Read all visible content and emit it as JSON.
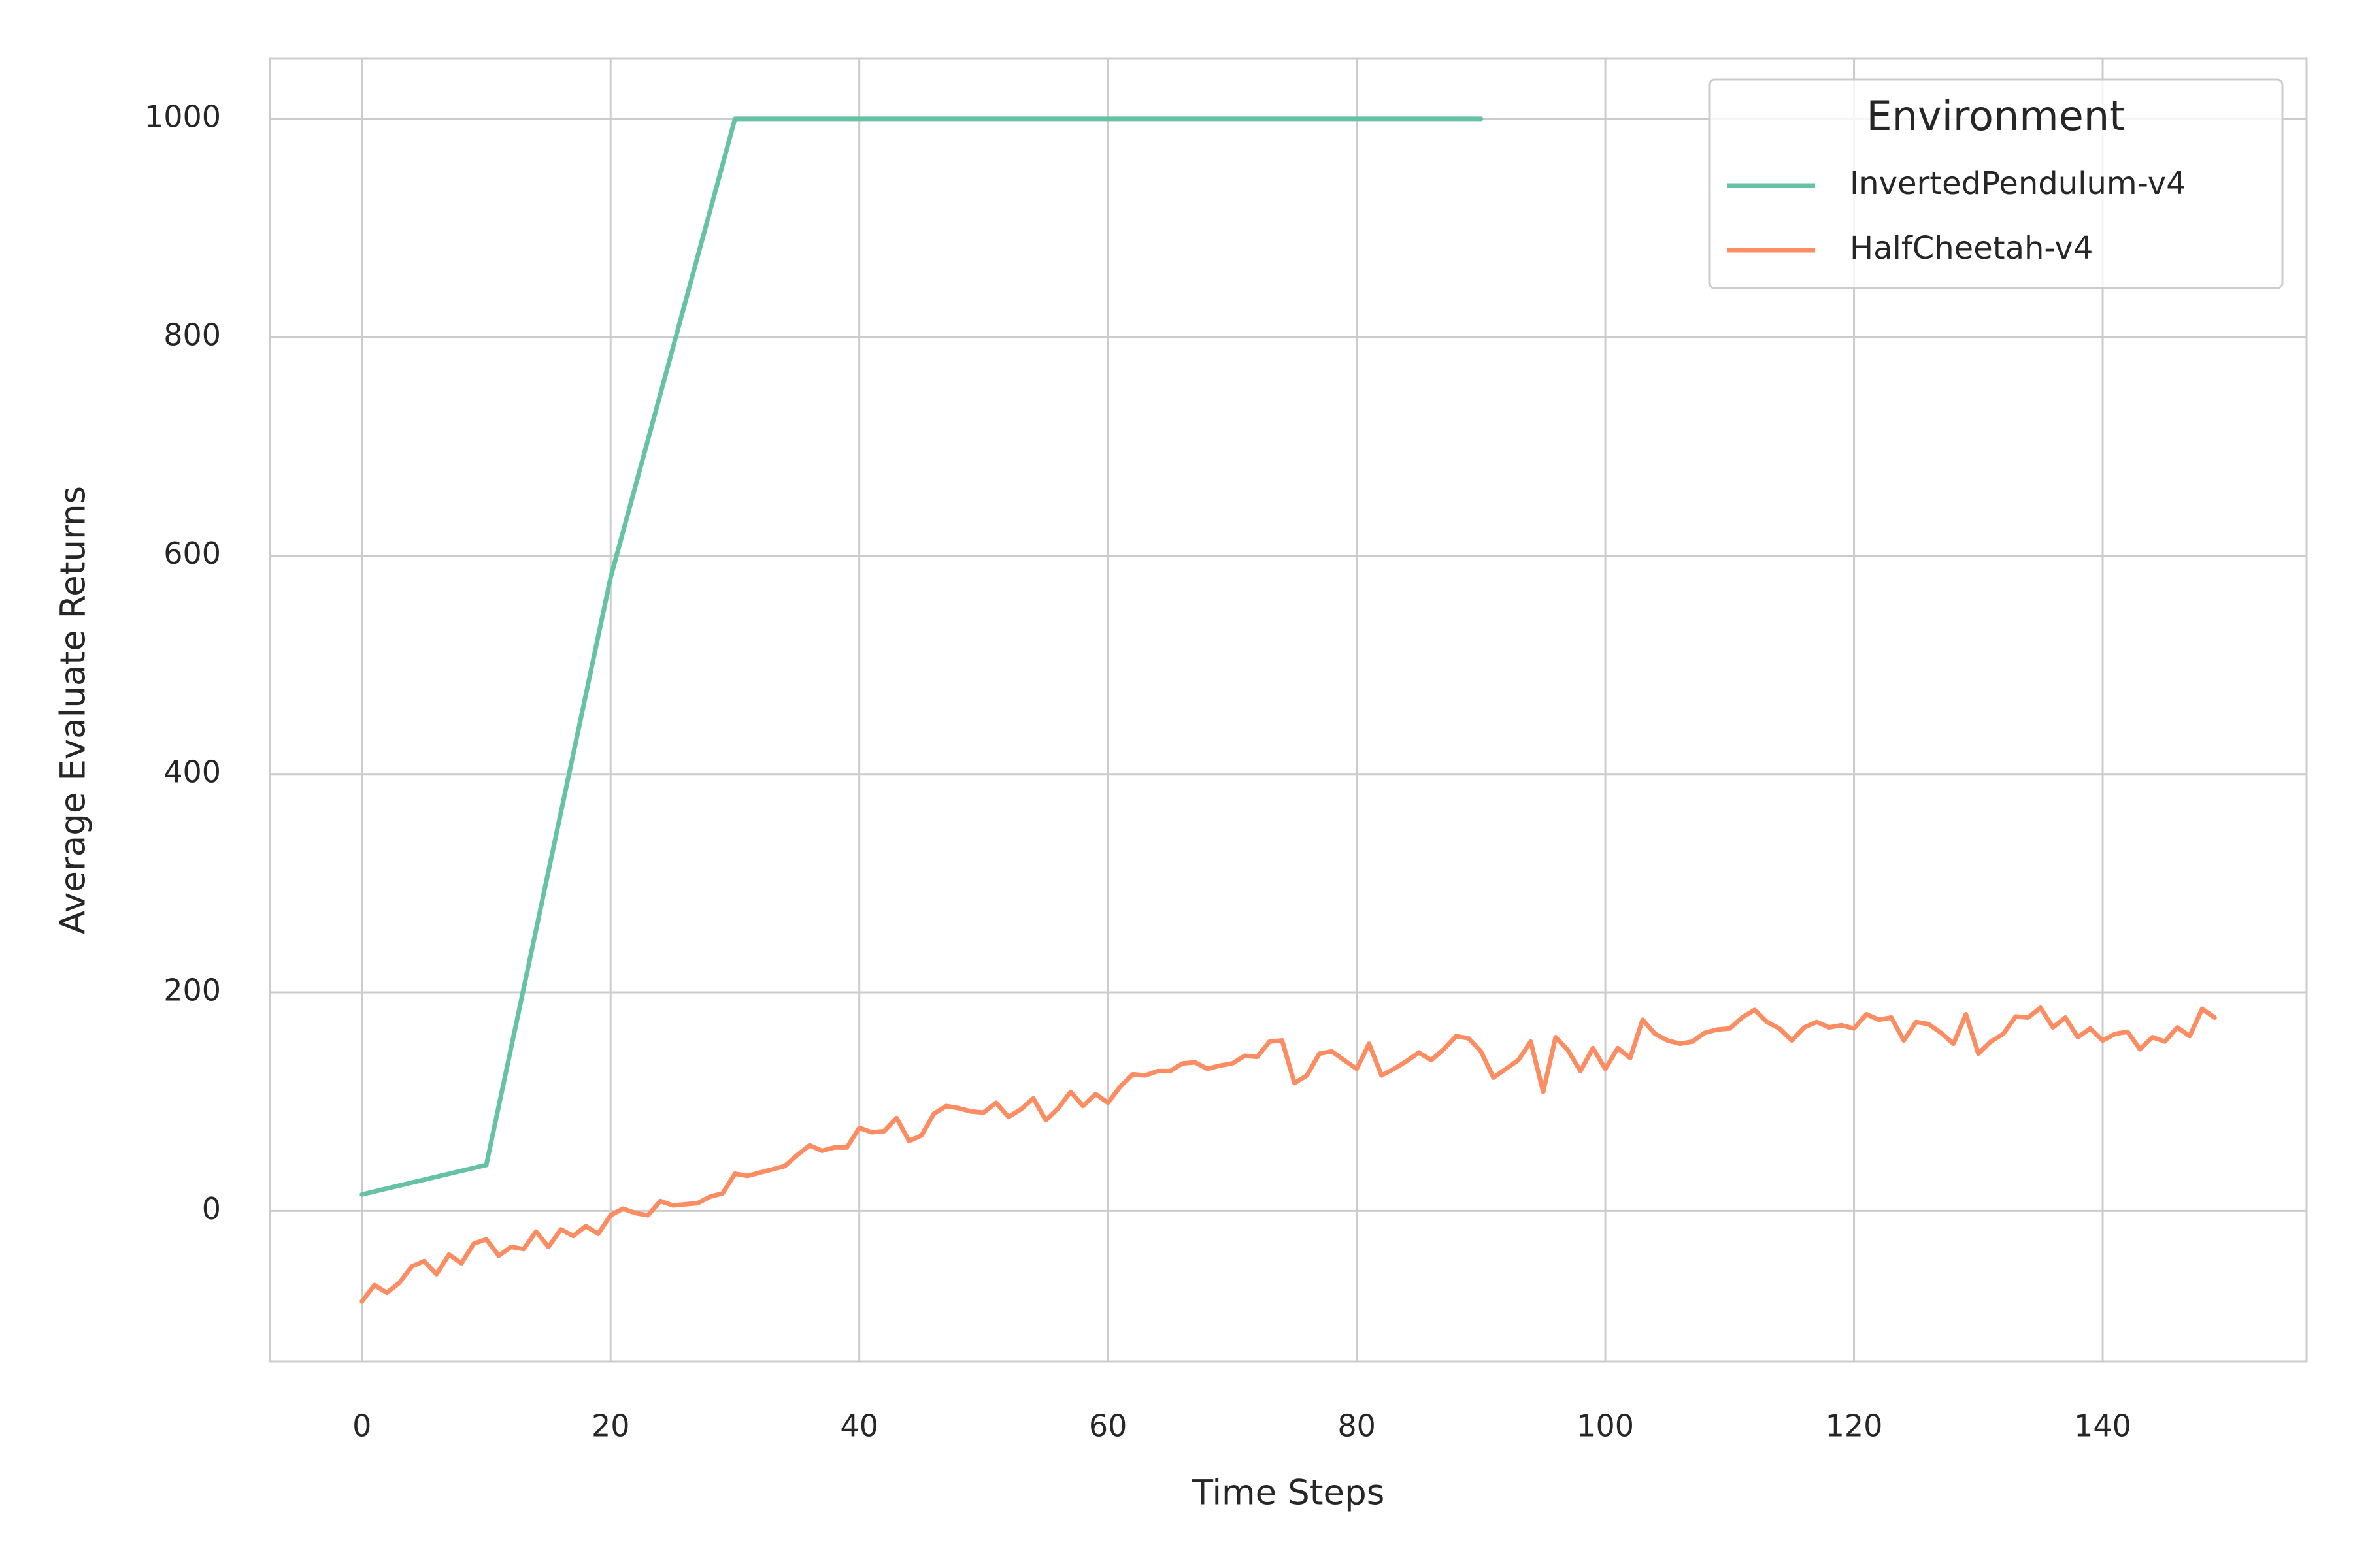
{
  "chart_data": {
    "type": "line",
    "x_label": "Time Steps",
    "y_label": "Average Evaluate Returns",
    "legend_title": "Environment",
    "legend_loc": "upper right",
    "grid": true,
    "xlim": [
      -7.4,
      156.4
    ],
    "ylim": [
      -138,
      1055
    ],
    "xticks": [
      0,
      20,
      40,
      60,
      80,
      100,
      120,
      140
    ],
    "yticks": [
      0,
      200,
      400,
      600,
      800,
      1000
    ],
    "series": [
      {
        "name": "InvertedPendulum-v4",
        "color": "#66c2a5",
        "x": [
          0,
          10,
          20,
          30,
          40,
          50,
          60,
          70,
          80,
          90
        ],
        "values": [
          15,
          42,
          580,
          1000,
          1000,
          1000,
          1000,
          1000,
          1000,
          1000
        ]
      },
      {
        "name": "HalfCheetah-v4",
        "color": "#fc8d62",
        "x": [
          0,
          1,
          2,
          3,
          4,
          5,
          6,
          7,
          8,
          9,
          10,
          11,
          12,
          13,
          14,
          15,
          16,
          17,
          18,
          19,
          20,
          21,
          22,
          23,
          24,
          25,
          26,
          27,
          28,
          29,
          30,
          31,
          32,
          33,
          34,
          35,
          36,
          37,
          38,
          39,
          40,
          41,
          42,
          43,
          44,
          45,
          46,
          47,
          48,
          49,
          50,
          51,
          52,
          53,
          54,
          55,
          56,
          57,
          58,
          59,
          60,
          61,
          62,
          63,
          64,
          65,
          66,
          67,
          68,
          69,
          70,
          71,
          72,
          73,
          74,
          75,
          76,
          77,
          78,
          79,
          80,
          81,
          82,
          83,
          84,
          85,
          86,
          87,
          88,
          89,
          90,
          91,
          92,
          93,
          94,
          95,
          96,
          97,
          98,
          99,
          100,
          101,
          102,
          103,
          104,
          105,
          106,
          107,
          108,
          109,
          110,
          111,
          112,
          113,
          114,
          115,
          116,
          117,
          118,
          119,
          120,
          121,
          122,
          123,
          124,
          125,
          126,
          127,
          128,
          129,
          130,
          131,
          132,
          133,
          134,
          135,
          136,
          137,
          138,
          139,
          140,
          141,
          142,
          143,
          144,
          145,
          146,
          147,
          148,
          149
        ],
        "values": [
          -83,
          -68,
          -75,
          -66,
          -51,
          -46,
          -58,
          -40,
          -48,
          -30,
          -26,
          -41,
          -33,
          -35,
          -19,
          -33,
          -17,
          -23,
          -14,
          -21,
          -4,
          2,
          -2,
          -4,
          9,
          5,
          6,
          7,
          13,
          16,
          34,
          32,
          35,
          38,
          41,
          51,
          60,
          55,
          58,
          58,
          76,
          72,
          73,
          85,
          64,
          69,
          89,
          96,
          94,
          91,
          90,
          99,
          86,
          93,
          103,
          83,
          94,
          109,
          96,
          107,
          99,
          114,
          125,
          124,
          128,
          128,
          135,
          136,
          130,
          133,
          135,
          142,
          141,
          155,
          156,
          117,
          124,
          144,
          146,
          138,
          130,
          153,
          124,
          130,
          137,
          145,
          138,
          148,
          160,
          158,
          146,
          122,
          130,
          138,
          155,
          109,
          159,
          147,
          128,
          149,
          130,
          149,
          140,
          175,
          162,
          156,
          153,
          155,
          163,
          166,
          167,
          177,
          184,
          173,
          167,
          156,
          168,
          173,
          168,
          170,
          167,
          180,
          175,
          177,
          156,
          173,
          171,
          163,
          153,
          180,
          144,
          155,
          162,
          178,
          177,
          186,
          168,
          177,
          159,
          167,
          156,
          162,
          164,
          148,
          159,
          155,
          168,
          160,
          185,
          177
        ]
      }
    ]
  }
}
